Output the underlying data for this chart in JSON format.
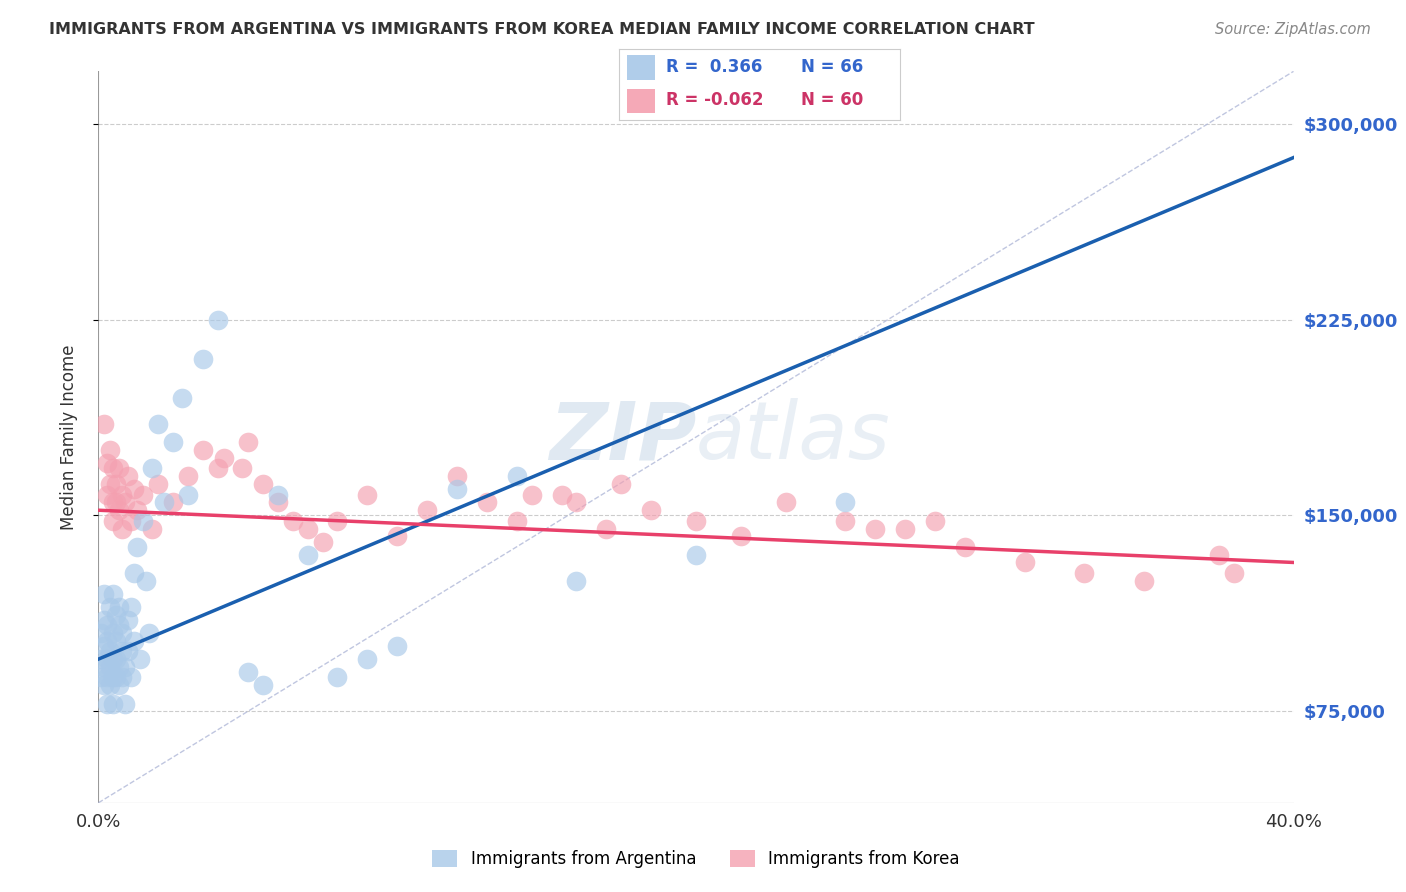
{
  "title": "IMMIGRANTS FROM ARGENTINA VS IMMIGRANTS FROM KOREA MEDIAN FAMILY INCOME CORRELATION CHART",
  "source": "Source: ZipAtlas.com",
  "ylabel": "Median Family Income",
  "xlim": [
    0.0,
    0.4
  ],
  "ylim": [
    40000,
    320000
  ],
  "yticks": [
    75000,
    150000,
    225000,
    300000
  ],
  "xticks": [
    0.0,
    0.05,
    0.1,
    0.15,
    0.2,
    0.25,
    0.3,
    0.35,
    0.4
  ],
  "argentina_color": "#a8c8e8",
  "korea_color": "#f4a0b0",
  "argentina_line_color": "#1a5faf",
  "korea_line_color": "#e8406a",
  "ref_line_color": "#b0b8d8",
  "watermark_zip": "ZIP",
  "watermark_atlas": "atlas",
  "argentina_x": [
    0.001,
    0.001,
    0.001,
    0.002,
    0.002,
    0.002,
    0.002,
    0.002,
    0.003,
    0.003,
    0.003,
    0.003,
    0.003,
    0.004,
    0.004,
    0.004,
    0.004,
    0.005,
    0.005,
    0.005,
    0.005,
    0.005,
    0.006,
    0.006,
    0.006,
    0.006,
    0.007,
    0.007,
    0.007,
    0.007,
    0.008,
    0.008,
    0.008,
    0.009,
    0.009,
    0.01,
    0.01,
    0.011,
    0.011,
    0.012,
    0.012,
    0.013,
    0.014,
    0.015,
    0.016,
    0.017,
    0.018,
    0.02,
    0.022,
    0.025,
    0.028,
    0.03,
    0.035,
    0.04,
    0.05,
    0.055,
    0.06,
    0.07,
    0.08,
    0.09,
    0.1,
    0.12,
    0.14,
    0.16,
    0.2,
    0.25
  ],
  "argentina_y": [
    105000,
    95000,
    88000,
    110000,
    100000,
    92000,
    85000,
    120000,
    95000,
    108000,
    88000,
    102000,
    78000,
    115000,
    92000,
    85000,
    98000,
    105000,
    88000,
    95000,
    120000,
    78000,
    112000,
    95000,
    88000,
    102000,
    92000,
    108000,
    85000,
    115000,
    98000,
    88000,
    105000,
    92000,
    78000,
    110000,
    98000,
    88000,
    115000,
    102000,
    128000,
    138000,
    95000,
    148000,
    125000,
    105000,
    168000,
    185000,
    155000,
    178000,
    195000,
    158000,
    210000,
    225000,
    90000,
    85000,
    158000,
    135000,
    88000,
    95000,
    100000,
    160000,
    165000,
    125000,
    135000,
    155000
  ],
  "korea_x": [
    0.002,
    0.003,
    0.003,
    0.004,
    0.004,
    0.005,
    0.005,
    0.005,
    0.006,
    0.006,
    0.007,
    0.007,
    0.008,
    0.008,
    0.009,
    0.01,
    0.011,
    0.012,
    0.013,
    0.015,
    0.018,
    0.02,
    0.025,
    0.03,
    0.035,
    0.04,
    0.05,
    0.055,
    0.06,
    0.07,
    0.08,
    0.09,
    0.1,
    0.11,
    0.12,
    0.13,
    0.14,
    0.155,
    0.17,
    0.185,
    0.2,
    0.215,
    0.23,
    0.25,
    0.27,
    0.29,
    0.31,
    0.33,
    0.35,
    0.375,
    0.16,
    0.175,
    0.28,
    0.145,
    0.042,
    0.048,
    0.065,
    0.075,
    0.38,
    0.26
  ],
  "korea_y": [
    185000,
    170000,
    158000,
    175000,
    162000,
    155000,
    168000,
    148000,
    162000,
    155000,
    168000,
    152000,
    158000,
    145000,
    155000,
    165000,
    148000,
    160000,
    152000,
    158000,
    145000,
    162000,
    155000,
    165000,
    175000,
    168000,
    178000,
    162000,
    155000,
    145000,
    148000,
    158000,
    142000,
    152000,
    165000,
    155000,
    148000,
    158000,
    145000,
    152000,
    148000,
    142000,
    155000,
    148000,
    145000,
    138000,
    132000,
    128000,
    125000,
    135000,
    155000,
    162000,
    148000,
    158000,
    172000,
    168000,
    148000,
    140000,
    128000,
    145000
  ]
}
